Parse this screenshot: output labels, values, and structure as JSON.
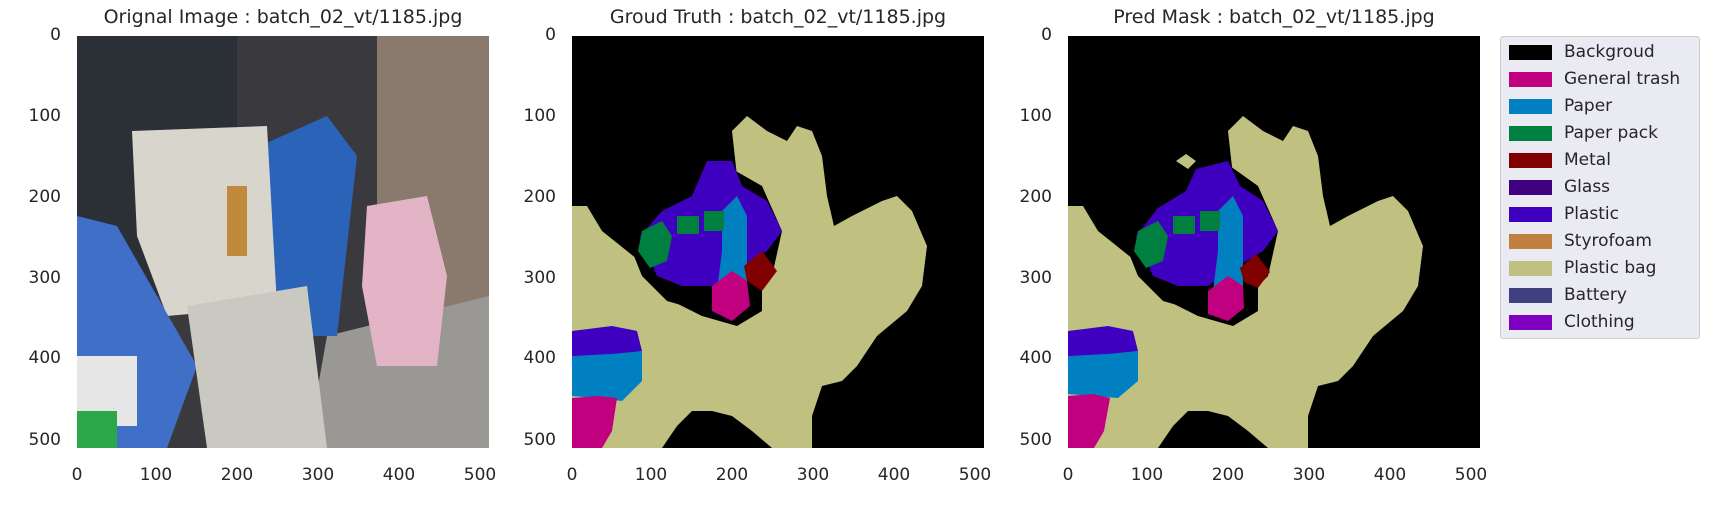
{
  "panels": [
    {
      "title": "Orignal Image : batch_02_vt/1185.jpg",
      "kind": "photo"
    },
    {
      "title": "Groud Truth : batch_02_vt/1185.jpg",
      "kind": "mask"
    },
    {
      "title": "Pred Mask : batch_02_vt/1185.jpg",
      "kind": "mask"
    }
  ],
  "axis": {
    "x_ticks": [
      "0",
      "100",
      "200",
      "300",
      "400",
      "500"
    ],
    "y_ticks": [
      "0",
      "100",
      "200",
      "300",
      "400",
      "500"
    ]
  },
  "legend": {
    "items": [
      {
        "label": "Backgroud",
        "color": "#000000"
      },
      {
        "label": "General trash",
        "color": "#c0007f"
      },
      {
        "label": "Paper",
        "color": "#0080c0"
      },
      {
        "label": "Paper pack",
        "color": "#008040"
      },
      {
        "label": "Metal",
        "color": "#800000"
      },
      {
        "label": "Glass",
        "color": "#400080"
      },
      {
        "label": "Plastic",
        "color": "#4000c0"
      },
      {
        "label": "Styrofoam",
        "color": "#c08040"
      },
      {
        "label": "Plastic bag",
        "color": "#c0c080"
      },
      {
        "label": "Battery",
        "color": "#404080"
      },
      {
        "label": "Clothing",
        "color": "#8000c0"
      }
    ]
  }
}
